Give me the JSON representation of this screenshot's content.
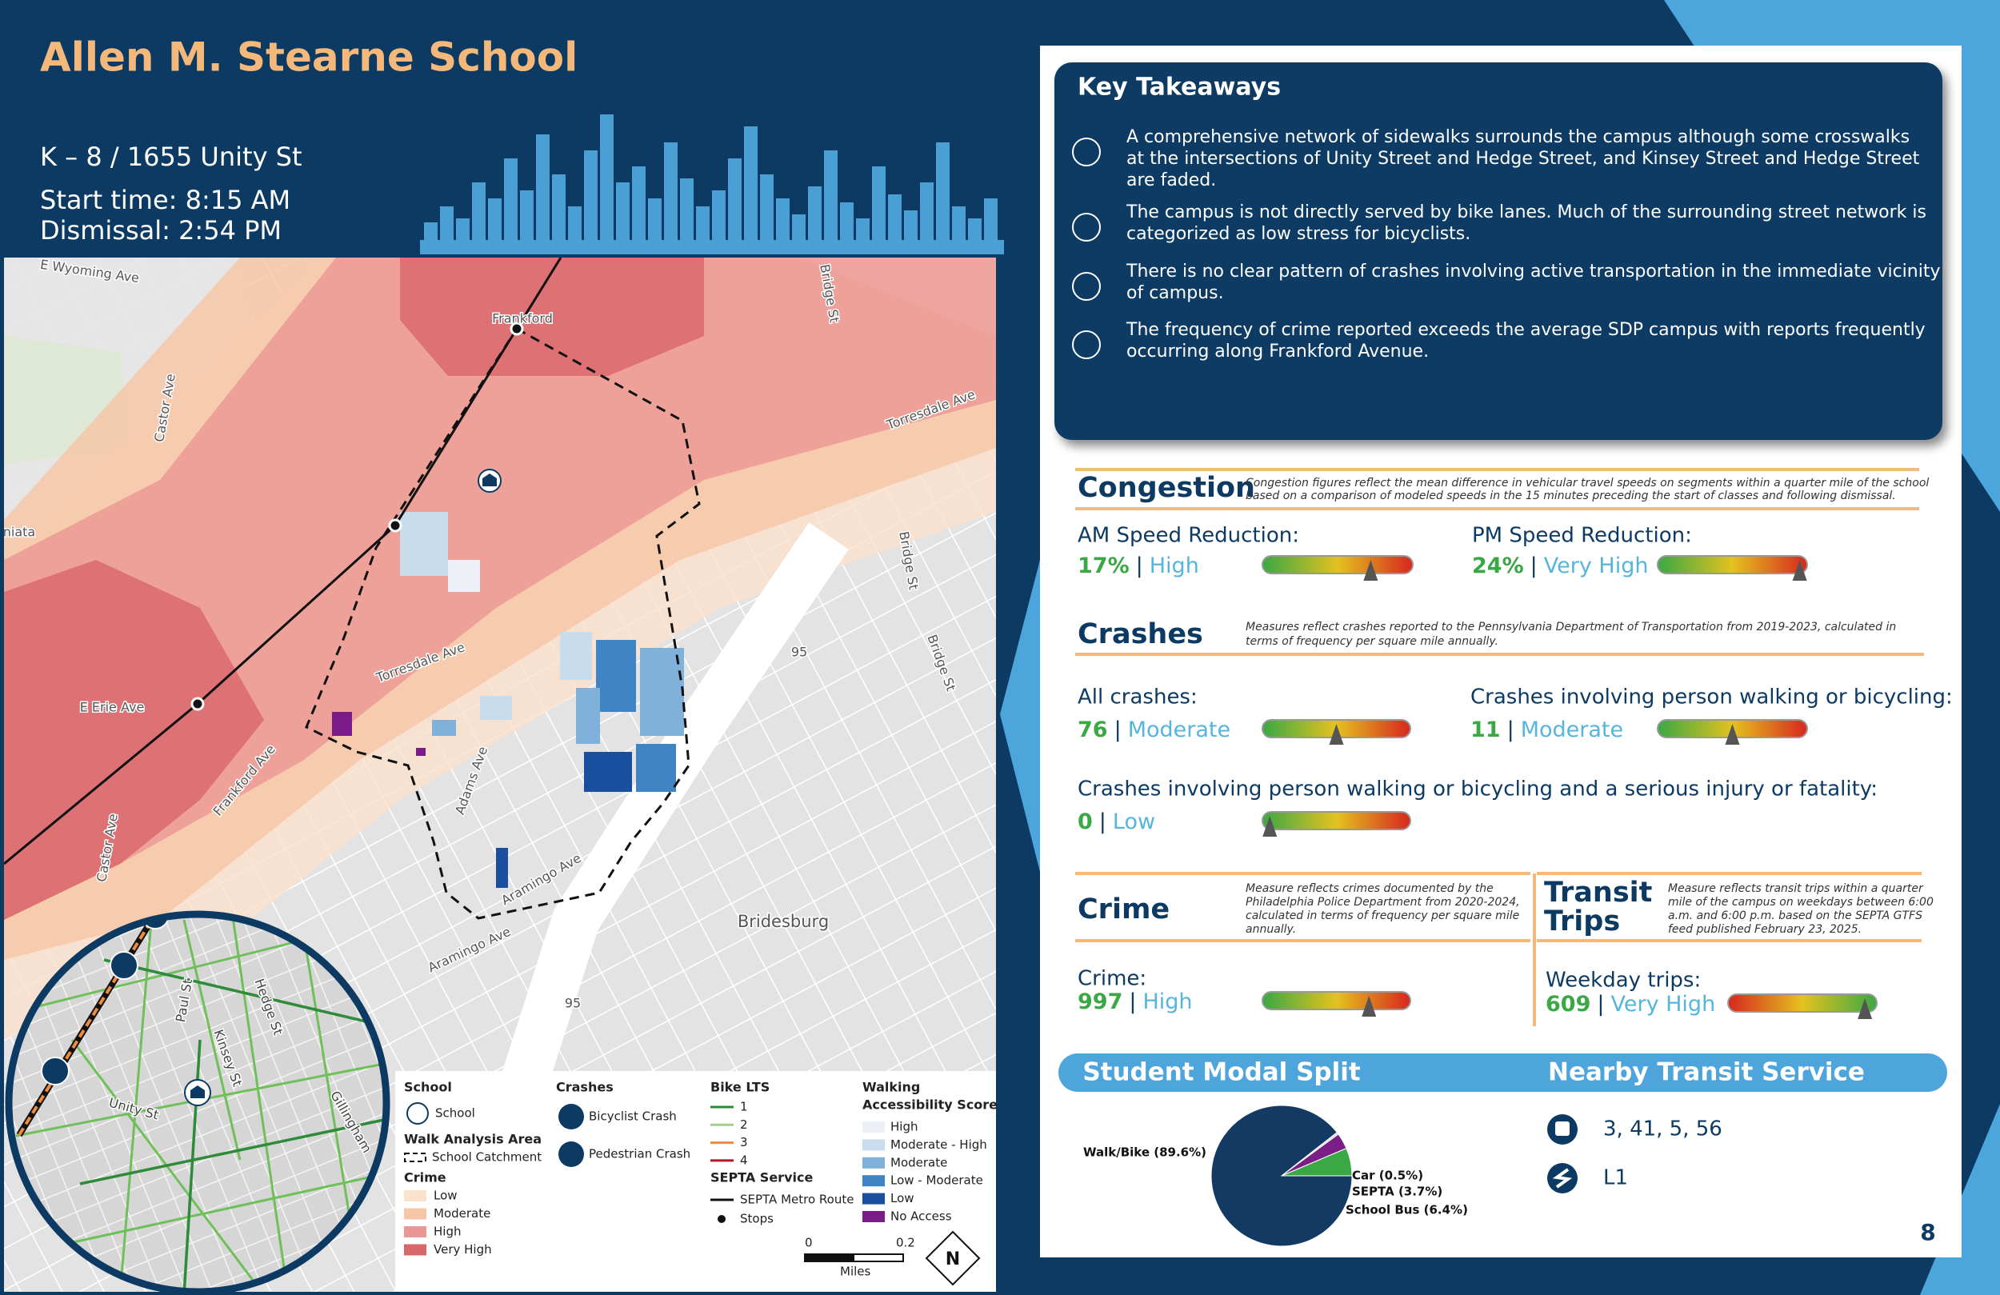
{
  "header": {
    "title": "Allen M. Stearne School",
    "grades_address": "K – 8 / 1655 Unity St",
    "start_time": "Start time: 8:15 AM",
    "dismissal": "Dismissal: 2:54 PM"
  },
  "map": {
    "labels": [
      "E Wyoming Ave",
      "Frankford",
      "Castor Ave",
      "Torresdale Ave",
      "Bridge St",
      "niata",
      "E Erie Ave",
      "Torresdale Ave",
      "Frankford Ave",
      "Bridge St",
      "Bridge St",
      "95",
      "Adams Ave",
      "Aramingo Ave",
      "Aramingo Ave",
      "Bridesburg",
      "Castor Ave",
      "95"
    ],
    "inset_labels": [
      "Paul St",
      "Kinsey St",
      "Hedge St",
      "Unity St",
      "Gillingham"
    ],
    "legend": {
      "school": {
        "title": "School",
        "item": "School"
      },
      "walk_area": {
        "title": "Walk Analysis Area",
        "item": "School Catchment"
      },
      "crime": {
        "title": "Crime",
        "items": [
          "Low",
          "Moderate",
          "High",
          "Very High"
        ]
      },
      "crashes": {
        "title": "Crashes",
        "items": [
          "Bicyclist Crash",
          "Pedestrian Crash"
        ]
      },
      "bike_lts": {
        "title": "Bike LTS",
        "items": [
          "1",
          "2",
          "3",
          "4"
        ]
      },
      "septa": {
        "title": "SEPTA Service",
        "items": [
          "SEPTA Metro Route",
          "Stops"
        ]
      },
      "walking": {
        "title_lines": [
          "Walking",
          "Accessibility Score"
        ],
        "items": [
          "High",
          "Moderate - High",
          "Moderate",
          "Low - Moderate",
          "Low",
          "No Access"
        ]
      }
    },
    "scale": {
      "start": "0",
      "end": "0.2",
      "unit": "Miles"
    },
    "north": "N"
  },
  "key_takeaways": {
    "title": "Key Takeaways",
    "items": [
      [
        "A comprehensive network of sidewalks surrounds the campus although some crosswalks",
        "at the intersections of Unity Street and Hedge Street, and Kinsey Street and Hedge Street",
        "are faded."
      ],
      [
        "The campus is not directly served by bike lanes. Much of the surrounding street network is",
        "categorized as low stress for bicyclists."
      ],
      [
        "There is no clear pattern of crashes involving active transportation in the immediate vicinity",
        "of campus."
      ],
      [
        "The frequency of crime reported exceeds the average SDP campus with reports frequently",
        "occurring along Frankford Avenue."
      ]
    ]
  },
  "separator": "|",
  "congestion": {
    "title": "Congestion",
    "note": [
      "Congestion figures reflect the mean difference in vehicular travel speeds on segments within a quarter mile of the school",
      "based on a comparison of modeled speeds in the 15 minutes preceding the start of classes and following dismissal."
    ],
    "metrics": [
      {
        "label": "AM Speed Reduction:",
        "value": "17%",
        "rating": "High"
      },
      {
        "label": "PM Speed Reduction:",
        "value": "24%",
        "rating": "Very High"
      }
    ]
  },
  "crashes": {
    "title": "Crashes",
    "note": [
      "Measures reflect crashes reported to the Pennsylvania Department of Transportation from 2019-2023, calculated in",
      "terms of frequency per square mile annually."
    ],
    "metrics": [
      {
        "label": "All crashes:",
        "value": "76",
        "rating": "Moderate"
      },
      {
        "label": "Crashes involving person walking or bicycling:",
        "value": "11",
        "rating": "Moderate"
      },
      {
        "label": "Crashes involving person walking or bicycling and a serious injury or fatality:",
        "value": "0",
        "rating": "Low"
      }
    ]
  },
  "crime": {
    "title": "Crime",
    "note": [
      "Measure reflects crimes documented by the",
      "Philadelphia Police Department from 2020-2024,",
      "calculated in terms of frequency per square mile",
      "annually."
    ],
    "metrics": [
      {
        "label": "Crime:",
        "value": "997",
        "rating": "High"
      }
    ]
  },
  "transit_trips": {
    "title_lines": [
      "Transit",
      "Trips"
    ],
    "note": [
      "Measure reflects transit trips within a quarter",
      "mile of the campus on weekdays between 6:00",
      "a.m. and 6:00 p.m. based on the SEPTA GTFS",
      "feed published February 23, 2025."
    ],
    "metrics": [
      {
        "label": "Weekday trips:",
        "value": "609",
        "rating": "Very High"
      }
    ]
  },
  "chart_data": {
    "type": "pie",
    "title": "Student Modal Split",
    "values": [
      89.6,
      0.5,
      3.7,
      6.4
    ],
    "value_labels": [
      "Walk/Bike (89.6%)",
      "Car (0.5%)",
      "SEPTA (3.7%)",
      "School Bus (6.4%)"
    ],
    "colors": [
      "#133a63",
      "#d9d9d9",
      "#7b1e87",
      "#3aa845"
    ]
  },
  "nearby_transit": {
    "title": "Nearby Transit Service",
    "bus": "3, 41, 5, 56",
    "rail": "L1"
  },
  "page_number": "8"
}
